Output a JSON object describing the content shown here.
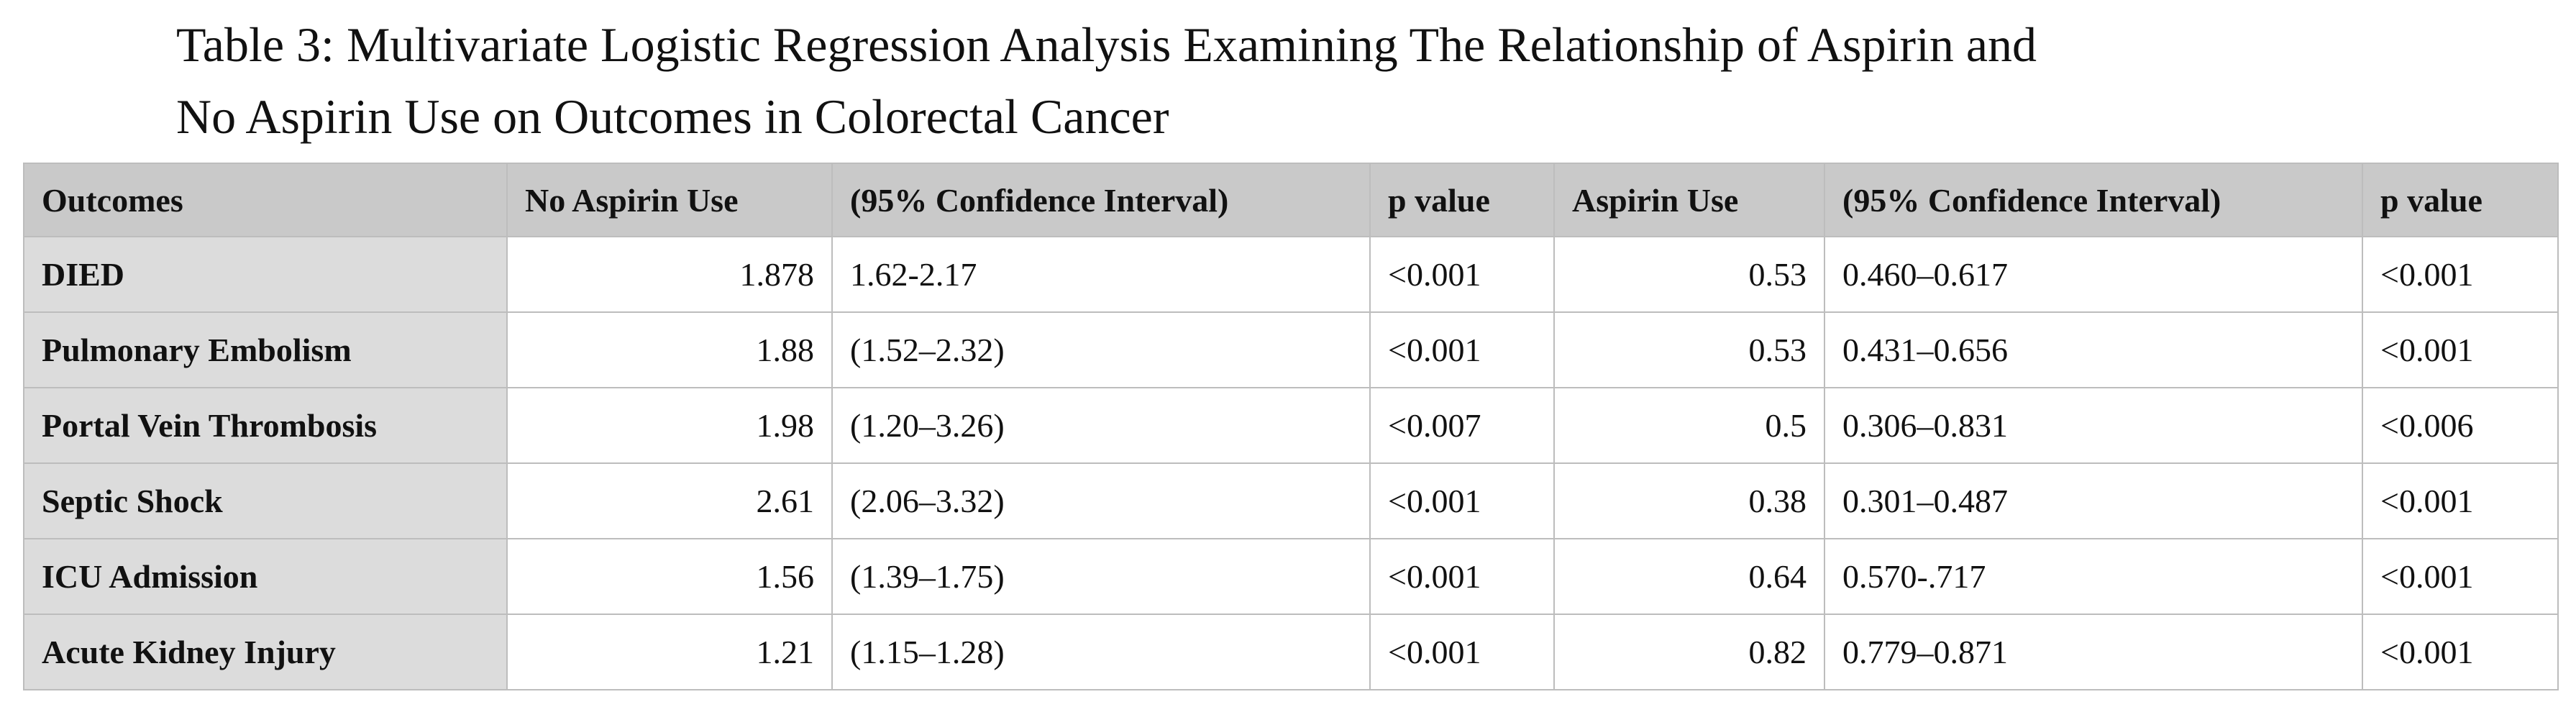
{
  "title": {
    "line1": "Table 3: Multivariate Logistic Regression Analysis Examining The Relationship of Aspirin and",
    "line2": "No Aspirin Use on Outcomes in Colorectal Cancer"
  },
  "table": {
    "headers": [
      "Outcomes",
      "No Aspirin Use",
      "(95% Confidence Interval)",
      "p value",
      "Aspirin Use",
      "(95% Confidence Interval)",
      "p value"
    ],
    "rows": [
      [
        "DIED",
        "1.878",
        "1.62-2.17",
        "<0.001",
        "0.53",
        "0.460–0.617",
        "<0.001"
      ],
      [
        "Pulmonary Embolism",
        "1.88",
        "(1.52–2.32)",
        "<0.001",
        "0.53",
        "0.431–0.656",
        "<0.001"
      ],
      [
        "Portal Vein Thrombosis",
        "1.98",
        "(1.20–3.26)",
        "<0.007",
        "0.5",
        "0.306–0.831",
        "<0.006"
      ],
      [
        "Septic Shock",
        "2.61",
        "(2.06–3.32)",
        "<0.001",
        "0.38",
        "0.301–0.487",
        "<0.001"
      ],
      [
        "ICU Admission",
        "1.56",
        "(1.39–1.75)",
        "<0.001",
        "0.64",
        "0.570-.717",
        "<0.001"
      ],
      [
        "Acute Kidney Injury",
        "1.21",
        "(1.15–1.28)",
        "<0.001",
        "0.82",
        "0.779–0.871",
        "<0.001"
      ]
    ]
  }
}
